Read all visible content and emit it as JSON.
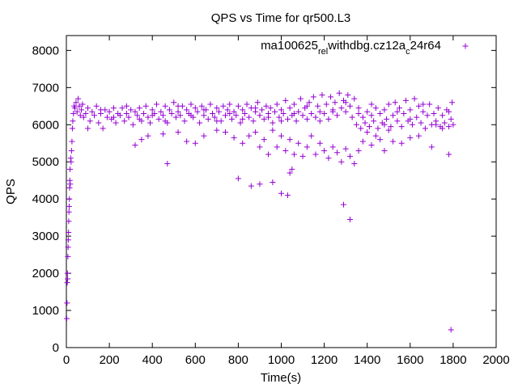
{
  "chart_data": {
    "type": "scatter",
    "title": "QPS vs Time for qr500.L3",
    "xlabel": "Time(s)",
    "ylabel": "QPS",
    "xlim": [
      0,
      2000
    ],
    "ylim": [
      0,
      8400
    ],
    "xticks": [
      0,
      200,
      400,
      600,
      800,
      1000,
      1200,
      1400,
      1600,
      1800,
      2000
    ],
    "yticks": [
      0,
      1000,
      2000,
      3000,
      4000,
      5000,
      6000,
      7000,
      8000
    ],
    "grid": false,
    "legend_position": "top-right",
    "marker": "+",
    "color": "#9400d3",
    "series": [
      {
        "name": "ma100625_rel_withdbg.cz12a_c24r64",
        "legend_parts": [
          {
            "text": "ma100625",
            "sub": false
          },
          {
            "text": "rel",
            "sub": true
          },
          {
            "text": "w",
            "sub": false
          },
          {
            "text": "ithdbg.cz12a",
            "sub": false
          },
          {
            "text": "c",
            "sub": true
          },
          {
            "text": "24r64",
            "sub": false
          }
        ],
        "points": [
          [
            2,
            780
          ],
          [
            3,
            1200
          ],
          [
            4,
            1750
          ],
          [
            5,
            2000
          ],
          [
            6,
            1850
          ],
          [
            7,
            2450
          ],
          [
            8,
            2700
          ],
          [
            9,
            2900
          ],
          [
            10,
            3100
          ],
          [
            11,
            3400
          ],
          [
            12,
            3650
          ],
          [
            13,
            3800
          ],
          [
            14,
            4000
          ],
          [
            15,
            4300
          ],
          [
            16,
            4500
          ],
          [
            17,
            4800
          ],
          [
            18,
            4400
          ],
          [
            20,
            5100
          ],
          [
            22,
            5000
          ],
          [
            24,
            5300
          ],
          [
            26,
            5550
          ],
          [
            28,
            5900
          ],
          [
            30,
            6100
          ],
          [
            33,
            6300
          ],
          [
            36,
            6500
          ],
          [
            40,
            6450
          ],
          [
            45,
            6600
          ],
          [
            50,
            6350
          ],
          [
            55,
            6700
          ],
          [
            60,
            6500
          ],
          [
            65,
            6250
          ],
          [
            70,
            6400
          ],
          [
            75,
            6550
          ],
          [
            80,
            6200
          ],
          [
            90,
            6300
          ],
          [
            100,
            6450
          ],
          [
            110,
            6100
          ],
          [
            120,
            6350
          ],
          [
            130,
            6250
          ],
          [
            140,
            6500
          ],
          [
            150,
            6050
          ],
          [
            160,
            6300
          ],
          [
            170,
            5900
          ],
          [
            180,
            6400
          ],
          [
            190,
            6200
          ],
          [
            200,
            6350
          ],
          [
            210,
            6150
          ],
          [
            220,
            6450
          ],
          [
            230,
            6050
          ],
          [
            240,
            6300
          ],
          [
            250,
            6250
          ],
          [
            260,
            6450
          ],
          [
            270,
            6100
          ],
          [
            280,
            6300
          ],
          [
            290,
            6200
          ],
          [
            300,
            6400
          ],
          [
            310,
            6000
          ],
          [
            320,
            6350
          ],
          [
            330,
            6250
          ],
          [
            340,
            6450
          ],
          [
            350,
            6100
          ],
          [
            360,
            6300
          ],
          [
            370,
            6500
          ],
          [
            380,
            6200
          ],
          [
            390,
            6050
          ],
          [
            400,
            6400
          ],
          [
            410,
            6300
          ],
          [
            420,
            6550
          ],
          [
            430,
            6150
          ],
          [
            440,
            6350
          ],
          [
            450,
            6250
          ],
          [
            460,
            6500
          ],
          [
            470,
            6050
          ],
          [
            480,
            6400
          ],
          [
            490,
            6300
          ],
          [
            500,
            6600
          ],
          [
            510,
            6200
          ],
          [
            520,
            6350
          ],
          [
            530,
            6250
          ],
          [
            540,
            6500
          ],
          [
            550,
            6100
          ],
          [
            560,
            6400
          ],
          [
            570,
            6300
          ],
          [
            580,
            6550
          ],
          [
            590,
            6200
          ],
          [
            600,
            6450
          ],
          [
            610,
            6350
          ],
          [
            620,
            6050
          ],
          [
            630,
            6500
          ],
          [
            640,
            6250
          ],
          [
            650,
            6400
          ],
          [
            660,
            6150
          ],
          [
            670,
            6550
          ],
          [
            680,
            6300
          ],
          [
            690,
            6200
          ],
          [
            700,
            6450
          ],
          [
            710,
            6350
          ],
          [
            720,
            6100
          ],
          [
            730,
            6500
          ],
          [
            740,
            6250
          ],
          [
            750,
            6400
          ],
          [
            760,
            6550
          ],
          [
            770,
            6150
          ],
          [
            780,
            6350
          ],
          [
            790,
            6250
          ],
          [
            800,
            6500
          ],
          [
            810,
            6050
          ],
          [
            820,
            6400
          ],
          [
            830,
            6300
          ],
          [
            840,
            6550
          ],
          [
            850,
            6200
          ],
          [
            860,
            6450
          ],
          [
            870,
            6100
          ],
          [
            880,
            6350
          ],
          [
            890,
            6600
          ],
          [
            900,
            6250
          ],
          [
            910,
            6400
          ],
          [
            920,
            6150
          ],
          [
            930,
            6500
          ],
          [
            940,
            6300
          ],
          [
            950,
            6450
          ],
          [
            960,
            6050
          ],
          [
            970,
            6350
          ],
          [
            980,
            6550
          ],
          [
            990,
            6200
          ],
          [
            1000,
            6400
          ],
          [
            1010,
            6300
          ],
          [
            1020,
            6650
          ],
          [
            1030,
            6150
          ],
          [
            1040,
            6450
          ],
          [
            1050,
            6250
          ],
          [
            1060,
            6550
          ],
          [
            1070,
            6100
          ],
          [
            1080,
            6350
          ],
          [
            1090,
            6700
          ],
          [
            1100,
            6250
          ],
          [
            1110,
            6450
          ],
          [
            1120,
            6150
          ],
          [
            1130,
            6600
          ],
          [
            1140,
            6300
          ],
          [
            1150,
            6750
          ],
          [
            1160,
            6200
          ],
          [
            1170,
            6500
          ],
          [
            1180,
            6350
          ],
          [
            1190,
            6800
          ],
          [
            1200,
            6300
          ],
          [
            1210,
            6550
          ],
          [
            1220,
            6150
          ],
          [
            1230,
            6750
          ],
          [
            1240,
            6400
          ],
          [
            1250,
            6600
          ],
          [
            1260,
            6250
          ],
          [
            1270,
            6850
          ],
          [
            1280,
            6450
          ],
          [
            1290,
            6650
          ],
          [
            1300,
            6350
          ],
          [
            1310,
            6800
          ],
          [
            1320,
            6500
          ],
          [
            1330,
            6200
          ],
          [
            1340,
            6700
          ],
          [
            1350,
            6000
          ],
          [
            1360,
            6300
          ],
          [
            1370,
            5900
          ],
          [
            1380,
            6200
          ],
          [
            1390,
            6050
          ],
          [
            1400,
            6350
          ],
          [
            1410,
            5950
          ],
          [
            1420,
            6250
          ],
          [
            1430,
            6100
          ],
          [
            1440,
            6450
          ],
          [
            1450,
            5900
          ],
          [
            1460,
            6300
          ],
          [
            1470,
            6050
          ],
          [
            1480,
            6400
          ],
          [
            1490,
            6150
          ],
          [
            1500,
            6550
          ],
          [
            1510,
            5950
          ],
          [
            1520,
            6250
          ],
          [
            1530,
            6600
          ],
          [
            1540,
            6100
          ],
          [
            1550,
            6450
          ],
          [
            1560,
            5950
          ],
          [
            1570,
            6300
          ],
          [
            1580,
            6650
          ],
          [
            1590,
            6100
          ],
          [
            1600,
            6400
          ],
          [
            1610,
            6000
          ],
          [
            1620,
            6700
          ],
          [
            1630,
            6200
          ],
          [
            1640,
            6500
          ],
          [
            1650,
            6050
          ],
          [
            1660,
            6350
          ],
          [
            1670,
            5900
          ],
          [
            1680,
            6250
          ],
          [
            1690,
            6550
          ],
          [
            1700,
            6000
          ],
          [
            1710,
            6300
          ],
          [
            1720,
            6100
          ],
          [
            1730,
            6450
          ],
          [
            1740,
            5950
          ],
          [
            1750,
            6250
          ],
          [
            1760,
            6050
          ],
          [
            1770,
            6400
          ],
          [
            1780,
            5950
          ],
          [
            1790,
            6150
          ],
          [
            1795,
            6600
          ],
          [
            1800,
            6000
          ],
          [
            100,
            5900
          ],
          [
            160,
            6400
          ],
          [
            220,
            6200
          ],
          [
            280,
            6500
          ],
          [
            340,
            6150
          ],
          [
            400,
            6250
          ],
          [
            460,
            6100
          ],
          [
            520,
            6500
          ],
          [
            580,
            6250
          ],
          [
            640,
            6400
          ],
          [
            700,
            6100
          ],
          [
            760,
            6300
          ],
          [
            820,
            6150
          ],
          [
            880,
            6450
          ],
          [
            940,
            6200
          ],
          [
            1000,
            6100
          ],
          [
            1060,
            6300
          ],
          [
            1120,
            6500
          ],
          [
            1180,
            6100
          ],
          [
            1240,
            6350
          ],
          [
            1300,
            6600
          ],
          [
            1360,
            6450
          ],
          [
            1420,
            6550
          ],
          [
            1480,
            6000
          ],
          [
            1540,
            6350
          ],
          [
            1600,
            6150
          ],
          [
            1660,
            6550
          ],
          [
            1720,
            6000
          ],
          [
            1780,
            6350
          ],
          [
            320,
            5450
          ],
          [
            350,
            5600
          ],
          [
            380,
            5700
          ],
          [
            450,
            5750
          ],
          [
            520,
            5800
          ],
          [
            560,
            5550
          ],
          [
            600,
            5500
          ],
          [
            640,
            5700
          ],
          [
            700,
            5850
          ],
          [
            740,
            5800
          ],
          [
            780,
            5650
          ],
          [
            820,
            5500
          ],
          [
            850,
            5700
          ],
          [
            880,
            5800
          ],
          [
            900,
            5400
          ],
          [
            920,
            5600
          ],
          [
            940,
            5200
          ],
          [
            960,
            5850
          ],
          [
            980,
            5400
          ],
          [
            1000,
            5700
          ],
          [
            1020,
            5300
          ],
          [
            1040,
            5600
          ],
          [
            1060,
            5200
          ],
          [
            1080,
            5500
          ],
          [
            1100,
            5150
          ],
          [
            1120,
            5400
          ],
          [
            1140,
            5700
          ],
          [
            1160,
            5200
          ],
          [
            1180,
            5500
          ],
          [
            1200,
            5300
          ],
          [
            1220,
            5100
          ],
          [
            1240,
            5400
          ],
          [
            1260,
            5250
          ],
          [
            1280,
            5000
          ],
          [
            1300,
            5350
          ],
          [
            1320,
            5150
          ],
          [
            1340,
            4950
          ],
          [
            1360,
            5300
          ],
          [
            1380,
            5550
          ],
          [
            1400,
            5800
          ],
          [
            1420,
            5450
          ],
          [
            1440,
            5700
          ],
          [
            1460,
            5600
          ],
          [
            1480,
            5300
          ],
          [
            1500,
            5850
          ],
          [
            1520,
            5550
          ],
          [
            1560,
            5500
          ],
          [
            1600,
            5650
          ],
          [
            1640,
            5700
          ],
          [
            1700,
            5400
          ],
          [
            1750,
            5900
          ],
          [
            1780,
            5200
          ],
          [
            470,
            4950
          ],
          [
            800,
            4550
          ],
          [
            860,
            4350
          ],
          [
            900,
            4400
          ],
          [
            960,
            4450
          ],
          [
            1000,
            4150
          ],
          [
            1030,
            4100
          ],
          [
            1040,
            4700
          ],
          [
            1050,
            4800
          ],
          [
            1290,
            3850
          ],
          [
            1320,
            3450
          ],
          [
            1790,
            480
          ]
        ]
      }
    ]
  }
}
